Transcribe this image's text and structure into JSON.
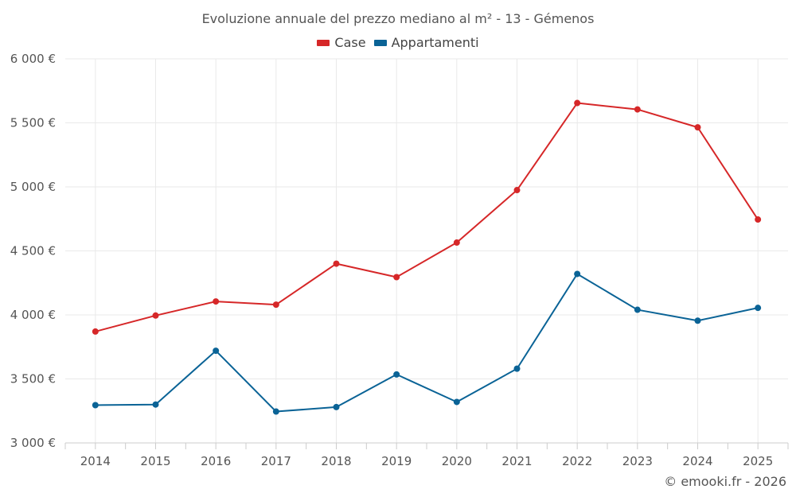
{
  "chart_data": {
    "type": "line",
    "title": "Evoluzione annuale del prezzo mediano al m² - 13 - Gémenos",
    "categories": [
      "2014",
      "2015",
      "2016",
      "2017",
      "2018",
      "2019",
      "2020",
      "2021",
      "2022",
      "2023",
      "2024",
      "2025"
    ],
    "series": [
      {
        "name": "Case",
        "color": "#d62728",
        "values": [
          3870,
          3995,
          4105,
          4080,
          4400,
          4295,
          4565,
          4975,
          5655,
          5605,
          5465,
          4745
        ]
      },
      {
        "name": "Appartamenti",
        "color": "#0a6396",
        "values": [
          3295,
          3300,
          3720,
          3245,
          3280,
          3535,
          3320,
          3580,
          4320,
          4040,
          3955,
          4055
        ]
      }
    ],
    "yticks": [
      3000,
      3500,
      4000,
      4500,
      5000,
      5500,
      6000
    ],
    "ytick_labels": [
      "3 000 €",
      "3 500 €",
      "4 000 €",
      "4 500 €",
      "5 000 €",
      "5 500 €",
      "6 000 €"
    ],
    "ylim": [
      3000,
      6000
    ],
    "xlabel": "",
    "ylabel": "",
    "grid": true,
    "legend_position": "top-center"
  },
  "credit": "© emooki.fr - 2026"
}
